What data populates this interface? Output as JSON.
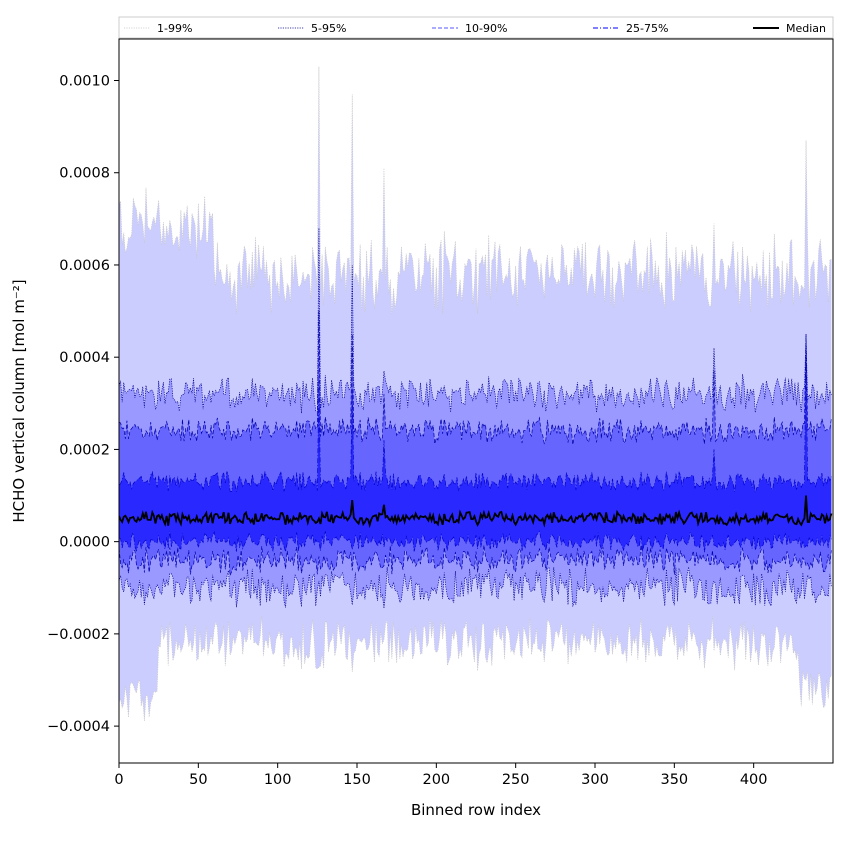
{
  "chart_data": {
    "type": "area",
    "xlabel": "Binned row index",
    "ylabel": "HCHO vertical column [mol m⁻²]",
    "xlim": [
      0,
      450
    ],
    "ylim": [
      -0.00048,
      0.00109
    ],
    "x_ticks": [
      0,
      50,
      100,
      150,
      200,
      250,
      300,
      350,
      400
    ],
    "x_tick_labels": [
      "0",
      "50",
      "100",
      "150",
      "200",
      "250",
      "300",
      "350",
      "400"
    ],
    "y_ticks": [
      -0.0004,
      -0.0002,
      0.0,
      0.0002,
      0.0004,
      0.0006,
      0.0008,
      0.001
    ],
    "y_tick_labels": [
      "−0.0004",
      "−0.0002",
      "0.0000",
      "0.0002",
      "0.0004",
      "0.0006",
      "0.0008",
      "0.0010"
    ],
    "grid": false,
    "legend_position": "top, above plot, single row",
    "legend": [
      "1-99%",
      "5-95%",
      "10-90%",
      "25-75%",
      "Median"
    ],
    "x_range": [
      0,
      450
    ],
    "bands": [
      {
        "name": "1-99%",
        "fill": "#cccdff",
        "line_color": "#c8c8c8",
        "line_style": "dotted"
      },
      {
        "name": "5-95%",
        "fill": "#9999ff",
        "line_color": "#00008b",
        "line_style": "dotted"
      },
      {
        "name": "10-90%",
        "fill": "#6666ff",
        "line_color": "#0000aa",
        "line_style": "dashed"
      },
      {
        "name": "25-75%",
        "fill": "#2929ff",
        "line_color": "#0000cc",
        "line_style": "dashdot"
      }
    ],
    "median": {
      "name": "Median",
      "color": "#000000"
    },
    "approx_levels": {
      "median": 5e-05,
      "p25": 0.0,
      "p75": 0.00013,
      "p10": -4e-05,
      "p90": 0.00024,
      "p05": -0.0001,
      "p95": 0.00032,
      "p01": -0.00022,
      "p99": 0.00058
    },
    "spikes": [
      {
        "x": 126,
        "p99": 0.00103,
        "p95": 0.00068,
        "p90": 0.0005,
        "p75": 0.00035,
        "median": 5e-05
      },
      {
        "x": 147,
        "p99": 0.00097,
        "p95": 0.0006,
        "p90": 0.00045,
        "p75": 0.00033,
        "median": 9e-05
      },
      {
        "x": 167,
        "p99": 0.00081,
        "p95": 0.00037,
        "p90": 0.00032,
        "p75": 0.00022,
        "median": 8e-05
      },
      {
        "x": 433,
        "p99": 0.00087,
        "p95": 0.00045,
        "p90": 0.00045,
        "p75": 0.00043,
        "median": 0.0001
      },
      {
        "x": 375,
        "p99": 0.00069,
        "p95": 0.00042,
        "p90": 0.00037,
        "p75": 0.0002,
        "median": 5e-05
      }
    ]
  }
}
